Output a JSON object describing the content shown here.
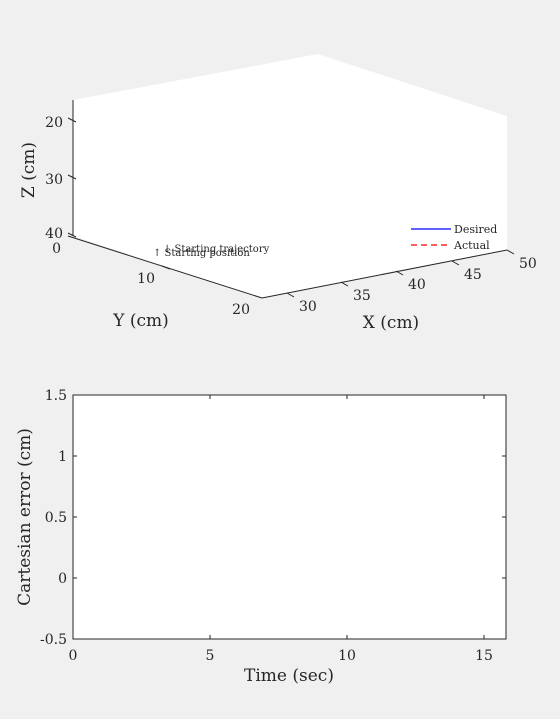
{
  "chart_data": [
    {
      "type": "line",
      "projection": "3d",
      "xlabel": "X (cm)",
      "ylabel": "Y (cm)",
      "zlabel": "Z (cm)",
      "xticks": [
        "30",
        "35",
        "40",
        "45",
        "50"
      ],
      "yticks": [
        "0",
        "10",
        "20"
      ],
      "zticks": [
        "20",
        "30",
        "40"
      ],
      "zdir": "reverse",
      "legend_position": "bottom-right",
      "series": [
        {
          "name": "Desired",
          "color": "#0000ff",
          "style": "solid",
          "values": []
        },
        {
          "name": "Actual",
          "color": "#ff0000",
          "style": "dashed",
          "values": []
        }
      ],
      "annotations": [
        "↓ Starting trajectory",
        "↑ Starting position"
      ]
    },
    {
      "type": "line",
      "xlabel": "Time (sec)",
      "ylabel": "Cartesian error (cm)",
      "xlim": [
        0,
        16
      ],
      "ylim": [
        -0.5,
        1.5
      ],
      "xticks": [
        "0",
        "5",
        "10",
        "15"
      ],
      "yticks": [
        "-0.5",
        "0",
        "0.5",
        "1",
        "1.5"
      ],
      "series": []
    }
  ]
}
